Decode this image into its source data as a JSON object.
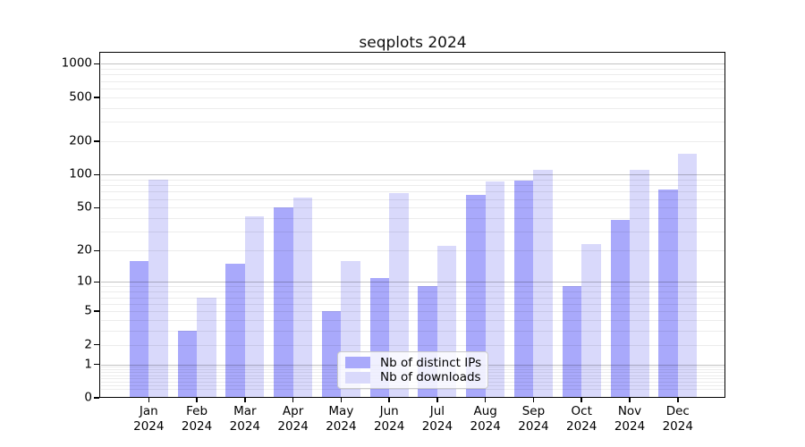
{
  "title": "seqplots 2024",
  "legend": {
    "items": [
      {
        "label": "Nb of distinct IPs",
        "color": "#a9a9fb"
      },
      {
        "label": "Nb of downloads",
        "color": "#d9d9fb"
      }
    ]
  },
  "chart_data": {
    "type": "bar",
    "title": "seqplots 2024",
    "categories": [
      "Jan 2024",
      "Feb 2024",
      "Mar 2024",
      "Apr 2024",
      "May 2024",
      "Jun 2024",
      "Jul 2024",
      "Aug 2024",
      "Sep 2024",
      "Oct 2024",
      "Nov 2024",
      "Dec 2024"
    ],
    "series": [
      {
        "name": "Nb of distinct IPs",
        "color": "#a9a9fb",
        "values": [
          16,
          3,
          15,
          50,
          5,
          11,
          9,
          65,
          88,
          9,
          39,
          74
        ]
      },
      {
        "name": "Nb of downloads",
        "color": "#d9d9fb",
        "values": [
          90,
          7,
          42,
          62,
          16,
          68,
          22,
          86,
          110,
          23,
          110,
          155
        ]
      }
    ],
    "xlabel": "",
    "ylabel": "",
    "y_axis": {
      "scale": "log10(1+x)",
      "tick_values": [
        0,
        1,
        2,
        5,
        10,
        20,
        50,
        100,
        200,
        500,
        1000
      ],
      "tick_labels": [
        "0",
        "1",
        "2",
        "5",
        "10",
        "20",
        "50",
        "100",
        "200",
        "500",
        "1000"
      ],
      "major_gridlines": [
        1,
        10,
        100,
        1000
      ],
      "minor_gridline_mantissas": [
        2,
        3,
        4,
        5,
        6,
        7,
        8,
        9
      ],
      "ylim": [
        0,
        1260
      ]
    },
    "grid": true,
    "legend_position": "inside-bottom-center",
    "bar_colors": {
      "distinct_ips": "#a9a9fb",
      "downloads": "#d9d9fb"
    }
  }
}
